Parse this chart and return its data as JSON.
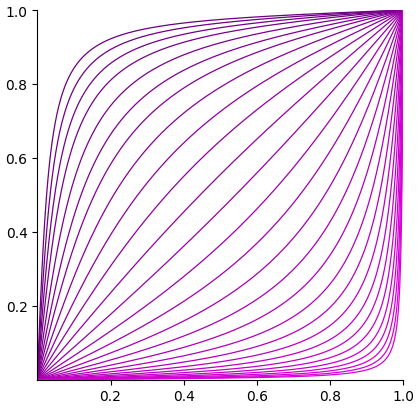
{
  "xlim": [
    0,
    1
  ],
  "ylim": [
    0,
    1
  ],
  "xticks": [
    0.2,
    0.4,
    0.6,
    0.8,
    1.0
  ],
  "yticks": [
    0.2,
    0.4,
    0.6,
    0.8,
    1.0
  ],
  "a_values": [
    0.04,
    0.055,
    0.075,
    0.1,
    0.14,
    0.19,
    0.25,
    0.34,
    0.46,
    0.62,
    0.84,
    1.14,
    1.55,
    2.1,
    2.85,
    3.87,
    5.25,
    7.13,
    9.67,
    13.1,
    17.8,
    24.1,
    32.7,
    44.4,
    60.2,
    81.7,
    110.8,
    150.4
  ],
  "line_color_dark": "#6B0080",
  "line_color_bright": "#DD00DD",
  "background_color": "#ffffff",
  "linewidth": 0.9,
  "n_points": 1000
}
